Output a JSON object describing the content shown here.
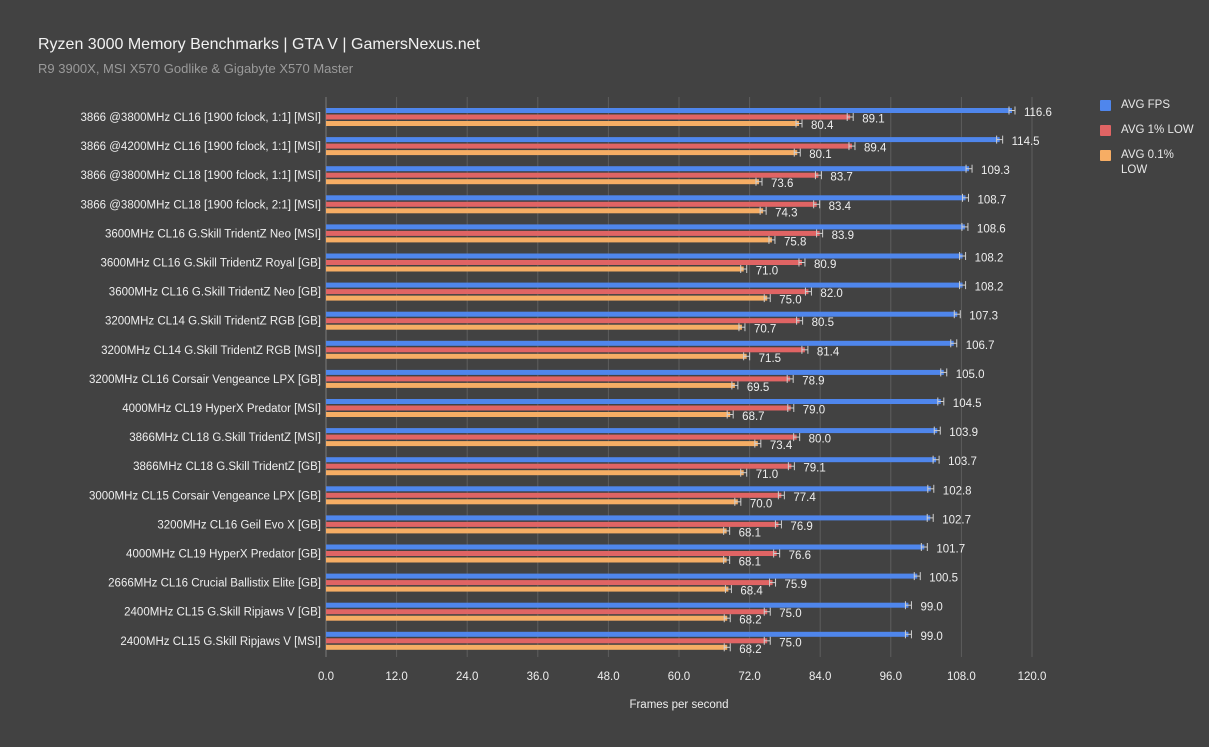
{
  "chart_data": {
    "type": "bar",
    "orientation": "horizontal",
    "title": "Ryzen 3000 Memory Benchmarks | GTA V | GamersNexus.net",
    "subtitle": "R9 3900X, MSI X570 Godlike & Gigabyte X570 Master",
    "xlabel": "Frames per second",
    "ylabel": "",
    "xlim": [
      0,
      120
    ],
    "xticks": [
      "0.0",
      "12.0",
      "24.0",
      "36.0",
      "48.0",
      "60.0",
      "72.0",
      "84.0",
      "96.0",
      "108.0",
      "120.0"
    ],
    "legend_position": "right",
    "categories": [
      "3866 @3800MHz CL16 [1900 fclock, 1:1] [MSI]",
      "3866 @4200MHz CL16 [1900 fclock, 1:1] [MSI]",
      "3866 @3800MHz CL18 [1900 fclock, 1:1] [MSI]",
      "3866 @3800MHz CL18 [1900 fclock, 2:1] [MSI]",
      "3600MHz CL16 G.Skill TridentZ Neo [MSI]",
      "3600MHz CL16 G.Skill TridentZ Royal [GB]",
      "3600MHz CL16 G.Skill TridentZ Neo [GB]",
      "3200MHz CL14 G.Skill TridentZ RGB [GB]",
      "3200MHz CL14 G.Skill TridentZ RGB [MSI]",
      "3200MHz CL16 Corsair Vengeance LPX [GB]",
      "4000MHz CL19 HyperX Predator [MSI]",
      "3866MHz CL18 G.Skill TridentZ [MSI]",
      "3866MHz CL18 G.Skill TridentZ [GB]",
      "3000MHz CL15 Corsair Vengeance LPX [GB]",
      "3200MHz CL16 Geil Evo X [GB]",
      "4000MHz CL19 HyperX Predator [GB]",
      "2666MHz CL16 Crucial Ballistix Elite [GB]",
      "2400MHz CL15 G.Skill Ripjaws V [GB]",
      "2400MHz CL15 G.Skill Ripjaws V [MSI]"
    ],
    "series": [
      {
        "name": "AVG FPS",
        "color": "#4f86ec",
        "values": [
          116.6,
          114.5,
          109.3,
          108.7,
          108.6,
          108.2,
          108.2,
          107.3,
          106.7,
          105.0,
          104.5,
          103.9,
          103.7,
          102.8,
          102.7,
          101.7,
          100.5,
          99.0,
          99.0
        ],
        "labels": [
          "116.6",
          "114.5",
          "109.3",
          "108.7",
          "108.6",
          "108.2",
          "108.2",
          "107.3",
          "106.7",
          "105.0",
          "104.5",
          "103.9",
          "103.7",
          "102.8",
          "102.7",
          "101.7",
          "100.5",
          "99.0",
          "99.0"
        ]
      },
      {
        "name": "AVG 1% LOW",
        "color": "#e06464",
        "values": [
          89.1,
          89.4,
          83.7,
          83.4,
          83.9,
          80.9,
          82.0,
          80.5,
          81.4,
          78.9,
          79.0,
          80.0,
          79.1,
          77.4,
          76.9,
          76.6,
          75.9,
          75.0,
          75.0
        ],
        "labels": [
          "89.1",
          "89.4",
          "83.7",
          "83.4",
          "83.9",
          "80.9",
          "82.0",
          "80.5",
          "81.4",
          "78.9",
          "79.0",
          "80.0",
          "79.1",
          "77.4",
          "76.9",
          "76.6",
          "75.9",
          "75.0",
          "75.0"
        ]
      },
      {
        "name": "AVG 0.1% LOW",
        "color": "#f6ad64",
        "values": [
          80.4,
          80.1,
          73.6,
          74.3,
          75.8,
          71.0,
          75.0,
          70.7,
          71.5,
          69.5,
          68.7,
          73.4,
          71.0,
          70.0,
          68.1,
          68.1,
          68.4,
          68.2,
          68.2
        ],
        "labels": [
          "80.4",
          "80.1",
          "73.6",
          "74.3",
          "75.8",
          "71.0",
          "75.0",
          "70.7",
          "71.5",
          "69.5",
          "68.7",
          "73.4",
          "71.0",
          "70.0",
          "68.1",
          "68.1",
          "68.4",
          "68.2",
          "68.2"
        ]
      }
    ]
  },
  "colors": {
    "background": "#424242",
    "grid": "#5e5e5e",
    "text": "#eeeeee",
    "subtitle": "#9a9a9a"
  }
}
